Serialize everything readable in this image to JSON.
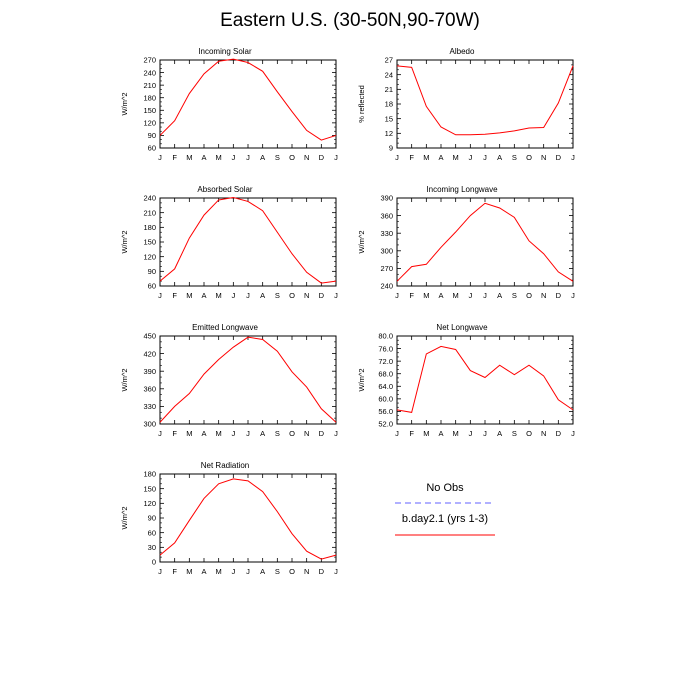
{
  "title": "Eastern U.S. (30-50N,90-70W)",
  "chart_data": [
    {
      "id": "incoming-solar",
      "type": "line",
      "title": "Incoming Solar",
      "ylabel": "W/m^2",
      "x": [
        "J",
        "F",
        "M",
        "A",
        "M",
        "J",
        "J",
        "A",
        "S",
        "O",
        "N",
        "D",
        "J"
      ],
      "ylim": [
        60,
        270
      ],
      "yticks": [
        "60",
        "90",
        "120",
        "150",
        "180",
        "210",
        "240",
        "270"
      ],
      "series": [
        {
          "values": [
            90,
            125,
            190,
            237,
            267,
            272,
            264,
            243,
            194,
            147,
            102,
            79,
            90
          ]
        }
      ]
    },
    {
      "id": "albedo",
      "type": "line",
      "title": "Albedo",
      "ylabel": "% reflected",
      "x": [
        "J",
        "F",
        "M",
        "A",
        "M",
        "J",
        "J",
        "A",
        "S",
        "O",
        "N",
        "D",
        "J"
      ],
      "ylim": [
        9,
        27
      ],
      "yticks": [
        "9",
        "12",
        "15",
        "18",
        "21",
        "24",
        "27"
      ],
      "series": [
        {
          "values": [
            25.8,
            25.5,
            17.5,
            13.3,
            11.7,
            11.7,
            11.8,
            12.1,
            12.5,
            13.1,
            13.2,
            18.2,
            25.8
          ]
        }
      ]
    },
    {
      "id": "absorbed-solar",
      "type": "line",
      "title": "Absorbed Solar",
      "ylabel": "W/m^2",
      "x": [
        "J",
        "F",
        "M",
        "A",
        "M",
        "J",
        "J",
        "A",
        "S",
        "O",
        "N",
        "D",
        "J"
      ],
      "ylim": [
        60,
        240
      ],
      "yticks": [
        "60",
        "90",
        "120",
        "150",
        "180",
        "210",
        "240"
      ],
      "series": [
        {
          "values": [
            70,
            95,
            158,
            205,
            236,
            241,
            233,
            214,
            170,
            126,
            88,
            66,
            70
          ]
        }
      ]
    },
    {
      "id": "incoming-longwave",
      "type": "line",
      "title": "Incoming Longwave",
      "ylabel": "W/m^2",
      "x": [
        "J",
        "F",
        "M",
        "A",
        "M",
        "J",
        "J",
        "A",
        "S",
        "O",
        "N",
        "D",
        "J"
      ],
      "ylim": [
        240,
        390
      ],
      "yticks": [
        "240",
        "270",
        "300",
        "330",
        "360",
        "390"
      ],
      "series": [
        {
          "values": [
            248,
            273,
            277,
            306,
            332,
            360,
            381,
            373,
            357,
            317,
            295,
            264,
            248
          ]
        }
      ]
    },
    {
      "id": "emitted-longwave",
      "type": "line",
      "title": "Emitted Longwave",
      "ylabel": "W/m^2",
      "x": [
        "J",
        "F",
        "M",
        "A",
        "M",
        "J",
        "J",
        "A",
        "S",
        "O",
        "N",
        "D",
        "J"
      ],
      "ylim": [
        300,
        450
      ],
      "yticks": [
        "300",
        "330",
        "360",
        "390",
        "420",
        "450"
      ],
      "series": [
        {
          "values": [
            303,
            330,
            352,
            385,
            410,
            431,
            448,
            444,
            424,
            389,
            363,
            326,
            303
          ]
        }
      ]
    },
    {
      "id": "net-longwave",
      "type": "line",
      "title": "Net Longwave",
      "ylabel": "W/m^2",
      "x": [
        "J",
        "F",
        "M",
        "A",
        "M",
        "J",
        "J",
        "A",
        "S",
        "O",
        "N",
        "D",
        "J"
      ],
      "ylim": [
        52,
        80
      ],
      "yticks": [
        "52.0",
        "56.0",
        "60.0",
        "64.0",
        "68.0",
        "72.0",
        "76.0",
        "80.0"
      ],
      "series": [
        {
          "values": [
            56.5,
            55.7,
            74.3,
            76.7,
            75.7,
            69.0,
            66.8,
            70.7,
            67.7,
            70.7,
            67.3,
            59.7,
            56.5
          ]
        }
      ]
    },
    {
      "id": "net-radiation",
      "type": "line",
      "title": "Net Radiation",
      "ylabel": "W/m^2",
      "x": [
        "J",
        "F",
        "M",
        "A",
        "M",
        "J",
        "J",
        "A",
        "S",
        "O",
        "N",
        "D",
        "J"
      ],
      "ylim": [
        0,
        180
      ],
      "yticks": [
        "0",
        "30",
        "60",
        "90",
        "120",
        "150",
        "180"
      ],
      "series": [
        {
          "values": [
            14,
            39,
            85,
            130,
            160,
            170,
            166,
            144,
            103,
            58,
            22,
            6,
            14
          ]
        }
      ]
    }
  ],
  "legend": {
    "items": [
      {
        "label": "No Obs",
        "color": "#6060ff",
        "dash": "6,4"
      },
      {
        "label": "b.day2.1 (yrs 1-3)",
        "color": "#ff0000",
        "dash": ""
      }
    ]
  },
  "colors": {
    "model_line": "#ff0000",
    "obs_line": "#6060ff"
  }
}
